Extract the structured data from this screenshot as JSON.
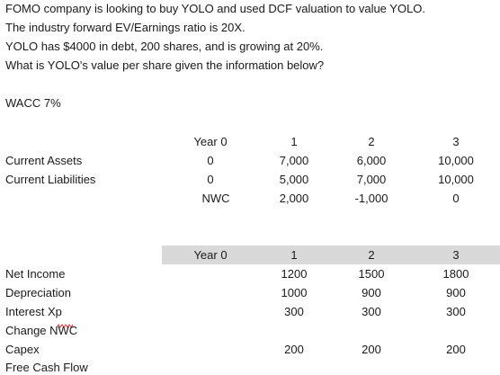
{
  "question": {
    "line1": "FOMO company is looking to buy YOLO and used DCF valuation to value YOLO.",
    "line2": "The industry forward EV/Earnings ratio is 20X.",
    "line3": "YOLO has $4000 in debt, 200 shares, and is growing at 20%.",
    "line4": "What is YOLO's value per share given the information below?"
  },
  "wacc": "WACC 7%",
  "balance": {
    "header": {
      "label": "Year 0",
      "y1": "1",
      "y2": "2",
      "y3": "3"
    },
    "rows": [
      {
        "label": "Current Assets",
        "y0": "0",
        "y1": "7,000",
        "y2": "6,000",
        "y3": "10,000"
      },
      {
        "label": "Current Liabilities",
        "y0": "0",
        "y1": "5,000",
        "y2": "7,000",
        "y3": "10,000"
      },
      {
        "label": "",
        "y0": "NWC",
        "y1": "2,000",
        "y2": "-1,000",
        "y3": "0"
      }
    ]
  },
  "cashflow": {
    "header": {
      "label": "Year 0",
      "y1": "1",
      "y2": "2",
      "y3": "3"
    },
    "highlight_color": "#d9d9d9",
    "rows": [
      {
        "label": "Net Income",
        "y1": "1200",
        "y2": "1500",
        "y3": "1800"
      },
      {
        "label": "Depreciation",
        "y1": "1000",
        "y2": "900",
        "y3": "900"
      },
      {
        "label": "Interest Xp",
        "y1": "300",
        "y2": "300",
        "y3": "300"
      },
      {
        "label": "Change NWC",
        "y1": "",
        "y2": "",
        "y3": ""
      },
      {
        "label": "Capex",
        "y1": "200",
        "y2": "200",
        "y3": "200"
      },
      {
        "label": "Free Cash Flow",
        "y1": "",
        "y2": "",
        "y3": ""
      }
    ]
  }
}
